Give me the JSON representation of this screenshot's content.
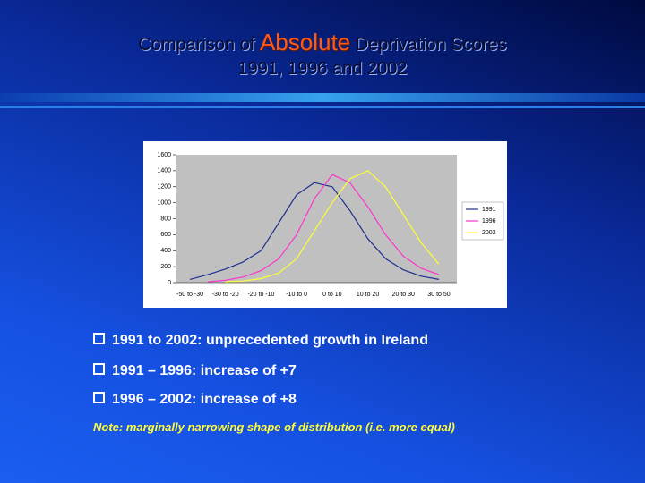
{
  "slide": {
    "title_before": "Comparison of",
    "title_emphasis": "Absolute",
    "title_after": "Deprivation Scores",
    "subtitle": "1991, 1996 and 2002",
    "bullets": [
      "1991 to 2002: unprecedented growth in Ireland",
      "1991 – 1996: increase of +7",
      "1996 – 2002: increase of +8"
    ],
    "note": "Note: marginally narrowing shape of distribution (i.e. more equal)"
  },
  "chart_data": {
    "type": "line",
    "categories": [
      "-50 to -30",
      null,
      "-30 to -20",
      null,
      "-20 to -10",
      null,
      "-10 to 0",
      null,
      "0 to 10",
      null,
      "10 to 20",
      null,
      "20 to 30",
      null,
      "30 to 50"
    ],
    "series": [
      {
        "name": "1991",
        "color": "#1f2f8f",
        "values": [
          40,
          100,
          170,
          260,
          400,
          750,
          1100,
          1250,
          1200,
          900,
          550,
          300,
          160,
          80,
          40
        ]
      },
      {
        "name": "1996",
        "color": "#ff33cc",
        "values": [
          null,
          10,
          30,
          70,
          150,
          300,
          600,
          1050,
          1350,
          1250,
          950,
          600,
          330,
          180,
          100
        ]
      },
      {
        "name": "2002",
        "color": "#ffff33",
        "values": [
          null,
          null,
          10,
          20,
          50,
          120,
          300,
          650,
          1000,
          1300,
          1400,
          1200,
          850,
          500,
          230
        ]
      }
    ],
    "ylim": [
      0,
      1600
    ],
    "yticks": [
      0,
      200,
      400,
      600,
      800,
      1000,
      1200,
      1400,
      1600
    ],
    "grid": false,
    "legend": "right"
  }
}
